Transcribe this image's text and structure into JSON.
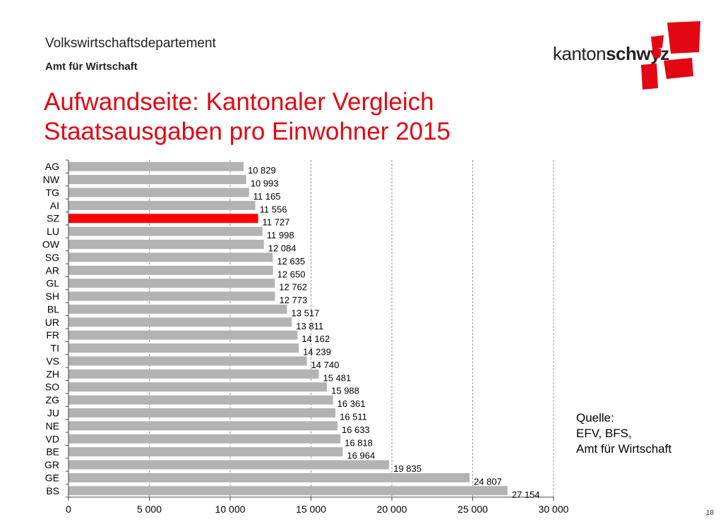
{
  "header": {
    "department": "Volkswirtschaftsdepartement",
    "office": "Amt für Wirtschaft",
    "title_line1": "Aufwandseite: Kantonaler Vergleich",
    "title_line2": "Staatsausgaben pro Einwohner 2015"
  },
  "logo": {
    "text_regular": "kanton",
    "text_bold": "schwyz",
    "color": "#e30613"
  },
  "source": {
    "line1": "Quelle:",
    "line2": "EFV, BFS,",
    "line3": "Amt für Wirtschaft"
  },
  "page_number": "18",
  "colors": {
    "bar": "#b3b3b3",
    "highlight": "#ff0000",
    "title": "#e30613"
  },
  "chart_data": {
    "type": "bar",
    "orientation": "horizontal",
    "categories": [
      "AG",
      "NW",
      "TG",
      "AI",
      "SZ",
      "LU",
      "OW",
      "SG",
      "AR",
      "GL",
      "SH",
      "BL",
      "UR",
      "FR",
      "TI",
      "VS",
      "ZH",
      "SO",
      "ZG",
      "JU",
      "NE",
      "VD",
      "BE",
      "GR",
      "GE",
      "BS"
    ],
    "values": [
      10829,
      10993,
      11165,
      11556,
      11727,
      11998,
      12084,
      12635,
      12650,
      12762,
      12773,
      13517,
      13811,
      14162,
      14239,
      14740,
      15481,
      15988,
      16361,
      16511,
      16633,
      16818,
      16964,
      19835,
      24807,
      27154
    ],
    "value_labels": [
      "10 829",
      "10 993",
      "11 165",
      "11 556",
      "11 727",
      "11 998",
      "12 084",
      "12 635",
      "12 650",
      "12 762",
      "12 773",
      "13 517",
      "13 811",
      "14 162",
      "14 239",
      "14 740",
      "15 481",
      "15 988",
      "16 361",
      "16 511",
      "16 633",
      "16 818",
      "16 964",
      "19 835",
      "24 807",
      "27 154"
    ],
    "highlight": "SZ",
    "xlim": [
      0,
      30000
    ],
    "xticks": [
      0,
      5000,
      10000,
      15000,
      20000,
      25000,
      30000
    ],
    "xtick_labels": [
      "0",
      "5 000",
      "10 000",
      "15 000",
      "20 000",
      "25 000",
      "30 000"
    ],
    "grid": "vertical dashed",
    "title": "",
    "xlabel": "",
    "ylabel": ""
  }
}
